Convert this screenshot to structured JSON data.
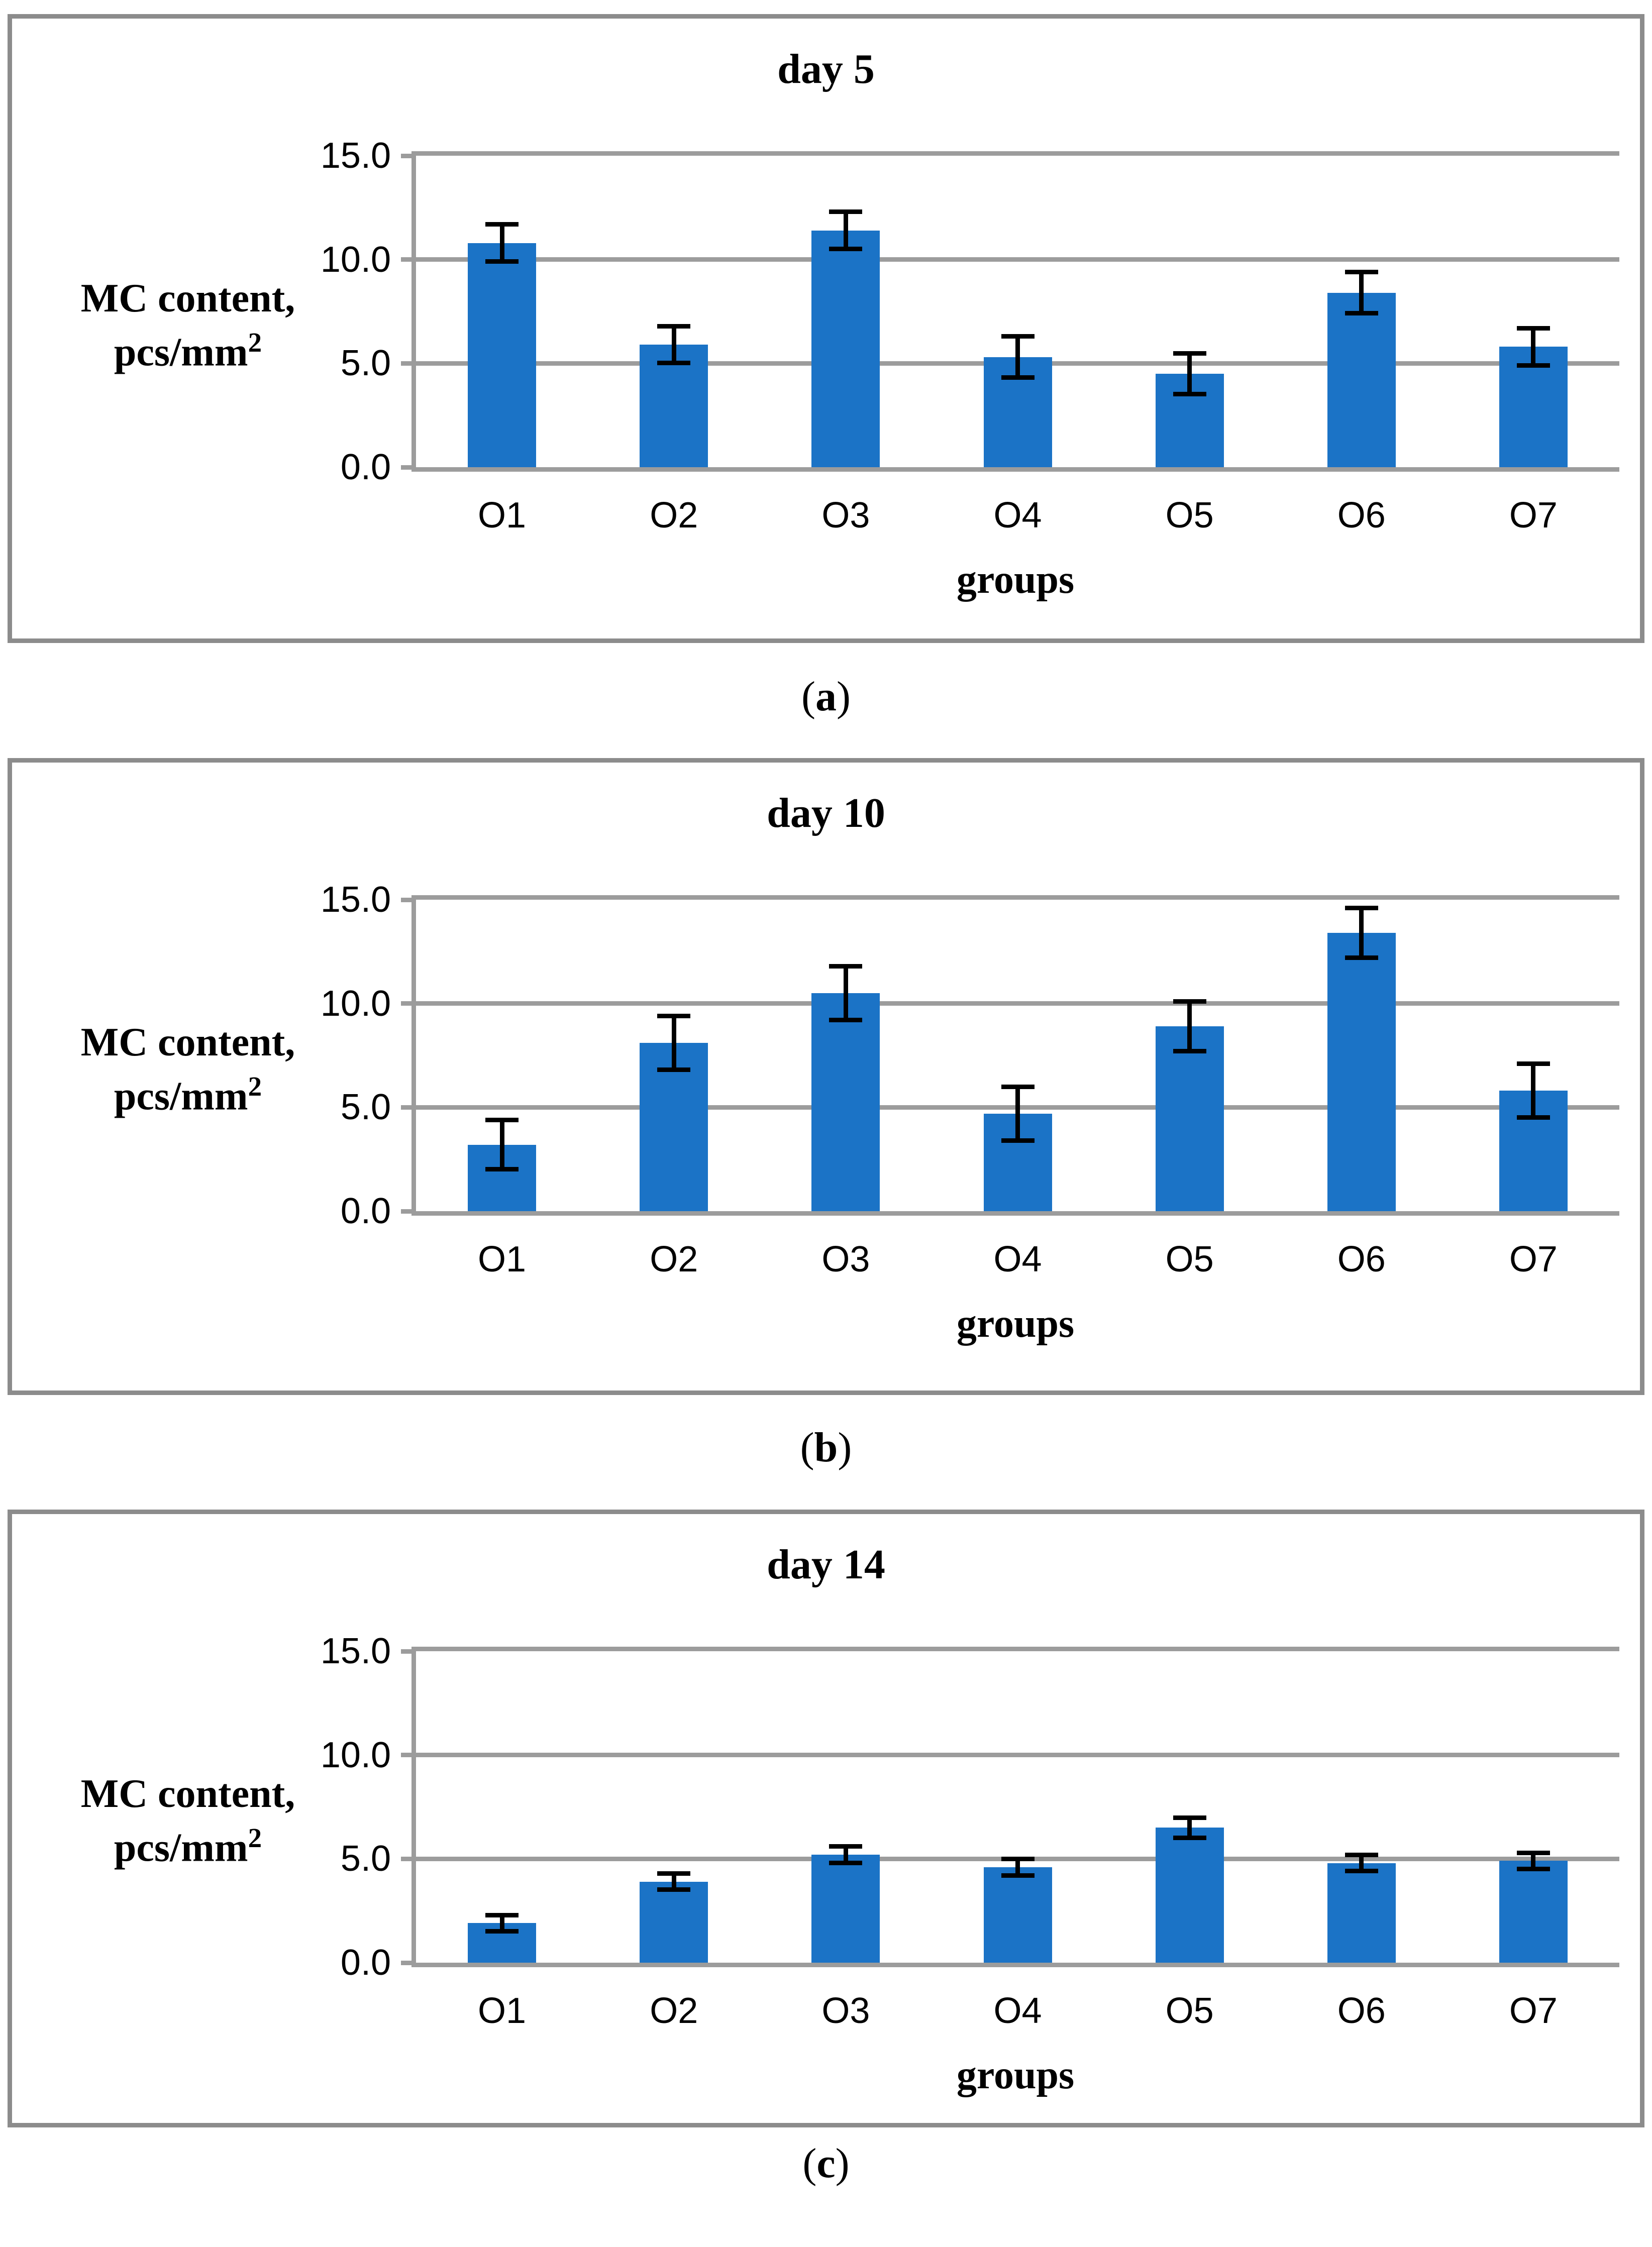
{
  "figure": {
    "y_axis_label": {
      "line1": "MC content,",
      "line2_base": "pcs/mm",
      "line2_sup": "2"
    },
    "x_axis_label": "groups"
  },
  "colors": {
    "bar": "#1B73C6",
    "gridline": "#9C9C9C",
    "panel_border": "#8C8C8C",
    "error_bar": "#000000",
    "text": "#000000",
    "background": "#FFFFFF"
  },
  "chart_data": [
    {
      "id": "a",
      "type": "bar",
      "title": "day 5",
      "caption_open": "(",
      "caption_letter": "a",
      "caption_close": ")",
      "xlabel": "groups",
      "ylabel": "MC content, pcs/mm²",
      "categories": [
        "O1",
        "O2",
        "O3",
        "O4",
        "O5",
        "O6",
        "O7"
      ],
      "values": [
        10.8,
        5.9,
        11.4,
        5.3,
        4.5,
        8.4,
        5.8
      ],
      "error_bars": [
        1.0,
        1.0,
        1.0,
        1.1,
        1.1,
        1.1,
        1.0
      ],
      "ylim": [
        0,
        15
      ],
      "yticks": [
        {
          "label": "0.0",
          "value": 0
        },
        {
          "label": "5.0",
          "value": 5
        },
        {
          "label": "10.0",
          "value": 10
        },
        {
          "label": "15.0",
          "value": 15
        }
      ],
      "grid": true,
      "legend_position": "none"
    },
    {
      "id": "b",
      "type": "bar",
      "title": "day 10",
      "caption_open": "(",
      "caption_letter": "b",
      "caption_close": ")",
      "xlabel": "groups",
      "ylabel": "MC content, pcs/mm²",
      "categories": [
        "O1",
        "O2",
        "O3",
        "O4",
        "O5",
        "O6",
        "O7"
      ],
      "values": [
        3.2,
        8.1,
        10.5,
        4.7,
        8.9,
        13.4,
        5.8
      ],
      "error_bars": [
        1.3,
        1.4,
        1.4,
        1.4,
        1.3,
        1.3,
        1.4
      ],
      "ylim": [
        0,
        15
      ],
      "yticks": [
        {
          "label": "0.0",
          "value": 0
        },
        {
          "label": "5.0",
          "value": 5
        },
        {
          "label": "10.0",
          "value": 10
        },
        {
          "label": "15.0",
          "value": 15
        }
      ],
      "grid": true,
      "legend_position": "none"
    },
    {
      "id": "c",
      "type": "bar",
      "title": "day 14",
      "caption_open": "(",
      "caption_letter": "c",
      "caption_close": ")",
      "xlabel": "groups",
      "ylabel": "MC content, pcs/mm²",
      "categories": [
        "O1",
        "O2",
        "O3",
        "O4",
        "O5",
        "O6",
        "O7"
      ],
      "values": [
        1.9,
        3.9,
        5.2,
        4.6,
        6.5,
        4.8,
        4.9
      ],
      "error_bars": [
        0.5,
        0.5,
        0.5,
        0.5,
        0.6,
        0.5,
        0.5
      ],
      "ylim": [
        0,
        15
      ],
      "yticks": [
        {
          "label": "0.0",
          "value": 0
        },
        {
          "label": "5.0",
          "value": 5
        },
        {
          "label": "10.0",
          "value": 10
        },
        {
          "label": "15.0",
          "value": 15
        }
      ],
      "grid": true,
      "legend_position": "none"
    }
  ]
}
